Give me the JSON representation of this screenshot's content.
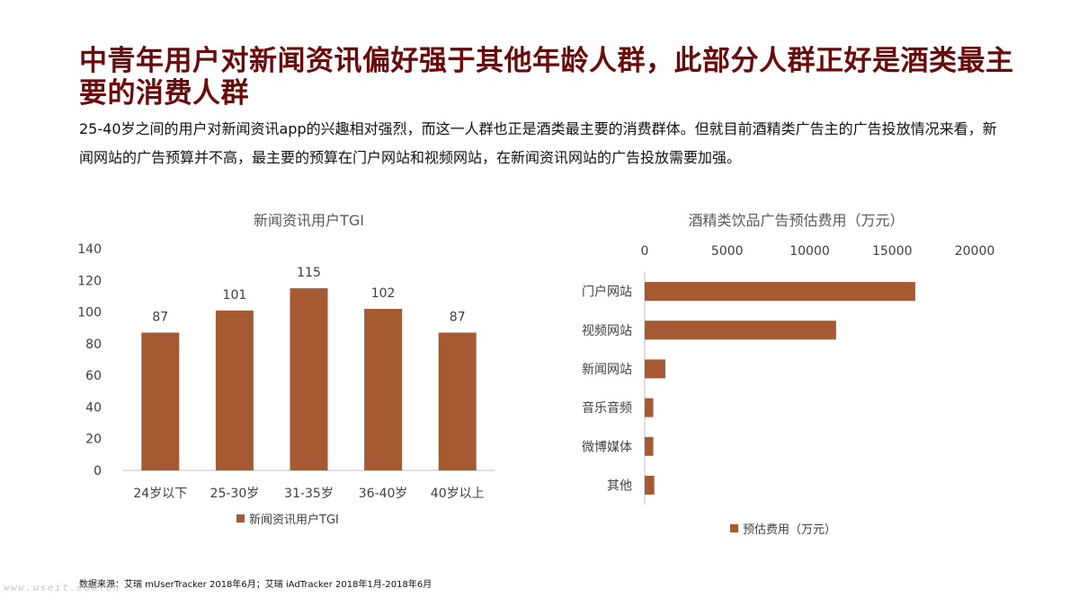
{
  "header": {
    "title": "中青年用户对新闻资讯偏好强于其他年龄人群，此部分人群正好是酒类最主要的消费人群",
    "subtitle": "25-40岁之间的用户对新闻资讯app的兴趣相对强烈，而这一人群也正是酒类最主要的消费群体。但就目前酒精类广告主的广告投放情况来看，新闻网站的广告预算并不高，最主要的预算在门户网站和视频网站，在新闻资讯网站的广告投放需要加强。"
  },
  "colors": {
    "bar": "#a65a32",
    "title": "#6b0a0a",
    "axis": "#bfbfbf"
  },
  "chart_data": [
    {
      "type": "bar",
      "title": "新闻资讯用户TGI",
      "categories": [
        "24岁以下",
        "25-30岁",
        "31-35岁",
        "36-40岁",
        "40岁以上"
      ],
      "series": [
        {
          "name": "新闻资讯用户TGI",
          "values": [
            87,
            101,
            115,
            102,
            87
          ]
        }
      ],
      "ylim": [
        0,
        140
      ],
      "yticks": [
        0,
        20,
        40,
        60,
        80,
        100,
        120,
        140
      ],
      "data_labels": true,
      "grid": false,
      "legend": "bottom"
    },
    {
      "type": "bar",
      "orientation": "horizontal",
      "title": "酒精类饮品广告预估费用（万元）",
      "categories": [
        "门户网站",
        "视频网站",
        "新闻网站",
        "音乐音频",
        "微博媒体",
        "其他"
      ],
      "series": [
        {
          "name": "预估费用（万元）",
          "values": [
            16400,
            11600,
            1250,
            520,
            520,
            580
          ]
        }
      ],
      "xlim": [
        0,
        20000
      ],
      "xticks": [
        0,
        5000,
        10000,
        15000,
        20000
      ],
      "xaxis_position": "top",
      "grid": false,
      "legend": "bottom"
    }
  ],
  "footer": {
    "source": "数据来源：艾瑞 mUserTracker 2018年6月；艾瑞 iAdTracker 2018年1月-2018年6月",
    "watermark": "www.useit.com.cn"
  }
}
